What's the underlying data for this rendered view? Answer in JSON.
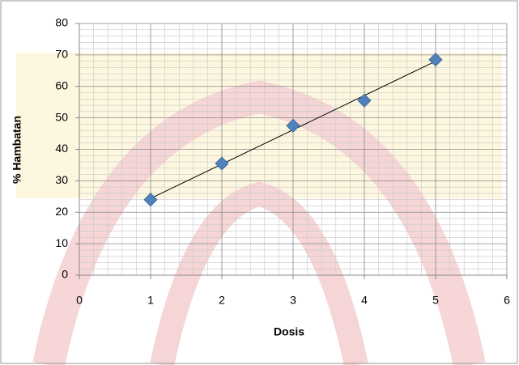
{
  "chart_data": {
    "type": "scatter",
    "x": [
      1,
      2,
      3,
      4,
      5
    ],
    "values": [
      24,
      35.5,
      47.5,
      55.5,
      68.5
    ],
    "color": "#4f81bd",
    "trendline": true,
    "xlabel": "Dosis",
    "ylabel": "% Hambatan",
    "xlim": [
      0,
      6
    ],
    "xticks": [
      0,
      1,
      2,
      3,
      4,
      5,
      6
    ],
    "ylim": [
      0,
      80
    ],
    "yticks": [
      0,
      10,
      20,
      30,
      40,
      50,
      60,
      70,
      80
    ],
    "grid": true
  }
}
